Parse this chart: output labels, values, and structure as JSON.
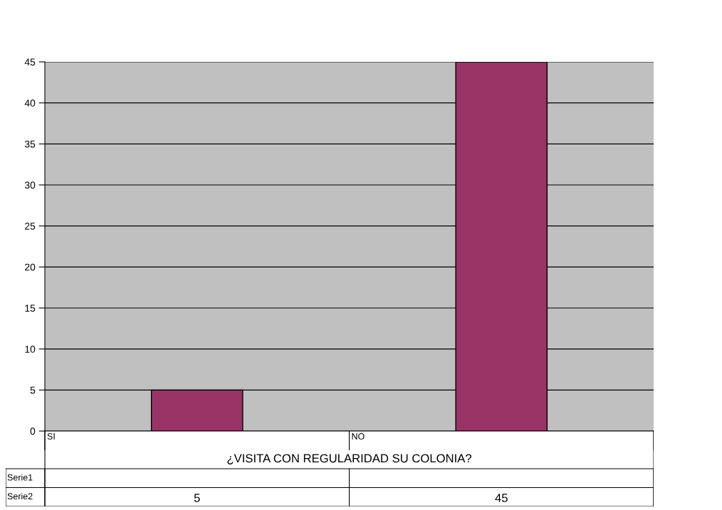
{
  "chart_data": {
    "type": "bar",
    "xlabel": "¿VISITA CON REGULARIDAD SU COLONIA?",
    "categories": [
      "SI",
      "NO"
    ],
    "series": [
      {
        "name": "Serie1",
        "values": [
          null,
          null
        ]
      },
      {
        "name": "Serie2",
        "color": "#993366",
        "values": [
          5,
          45
        ]
      }
    ],
    "ylim": [
      0,
      45
    ],
    "yticks": [
      0,
      5,
      10,
      15,
      20,
      25,
      30,
      35,
      40,
      45
    ],
    "grid": "y",
    "data_labels": true
  }
}
